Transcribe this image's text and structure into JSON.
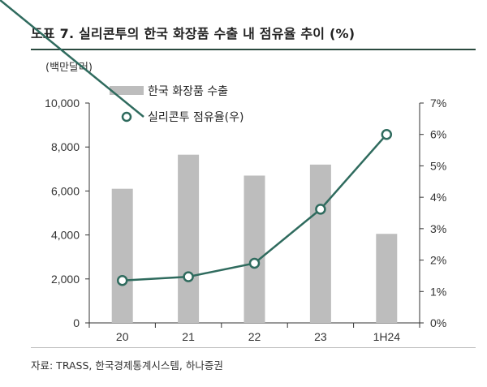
{
  "title": "도표 7. 실리콘투의 한국 화장품 수출 내 점유율 추이 (%)",
  "unit_label": "(백만달러)",
  "source": "자료: TRASS, 한국경제통계시스템, 하나증권",
  "chart_data": {
    "type": "bar",
    "categories": [
      "20",
      "21",
      "22",
      "23",
      "1H24"
    ],
    "series": [
      {
        "name": "한국 화장품 수출",
        "type": "bar",
        "axis": "left",
        "color": "#bdbdbd",
        "values": [
          6100,
          7650,
          6700,
          7200,
          4050
        ]
      },
      {
        "name": "실리콘투 점유율(우)",
        "type": "line",
        "axis": "right",
        "color": "#2f6b5e",
        "values": [
          1.35,
          1.47,
          1.9,
          3.62,
          6.0
        ]
      }
    ],
    "y_left": {
      "min": 0,
      "max": 10000,
      "ticks": [
        "0",
        "2,000",
        "4,000",
        "6,000",
        "8,000",
        "10,000"
      ],
      "tick_values": [
        0,
        2000,
        4000,
        6000,
        8000,
        10000
      ]
    },
    "y_right": {
      "min": 0,
      "max": 7,
      "ticks": [
        "0%",
        "1%",
        "2%",
        "3%",
        "4%",
        "5%",
        "6%",
        "7%"
      ],
      "tick_values": [
        0,
        1,
        2,
        3,
        4,
        5,
        6,
        7
      ]
    },
    "grid": false,
    "legend_position": "top-left"
  }
}
